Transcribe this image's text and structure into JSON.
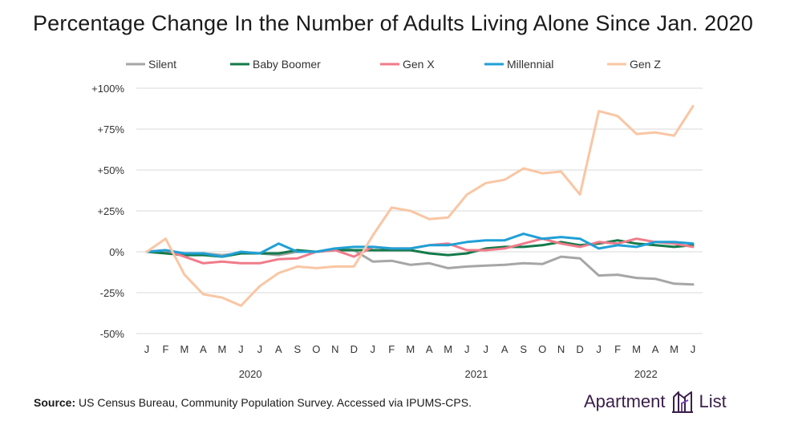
{
  "chart_data": {
    "type": "line",
    "title": "Percentage Change In the Number of Adults Living Alone Since Jan. 2020",
    "categories": [
      "J",
      "F",
      "M",
      "A",
      "M",
      "J",
      "J",
      "A",
      "S",
      "O",
      "N",
      "D",
      "J",
      "F",
      "M",
      "A",
      "M",
      "J",
      "J",
      "A",
      "S",
      "O",
      "N",
      "D",
      "J",
      "F",
      "M",
      "A",
      "M",
      "J"
    ],
    "year_labels": [
      "2020",
      "2021",
      "2022"
    ],
    "ylim": [
      -50,
      100
    ],
    "yticks": [
      -50,
      -25,
      0,
      25,
      50,
      75,
      100
    ],
    "ytick_labels": [
      "-50%",
      "-25%",
      "0%",
      "+25%",
      "+50%",
      "+75%",
      "+100%"
    ],
    "xlabel": "",
    "ylabel": "",
    "grid": true,
    "legend_position": "top",
    "series": [
      {
        "name": "Silent",
        "color": "#a6a6a6",
        "values": [
          0,
          0,
          -2,
          -1,
          -2,
          -1,
          -1,
          -2,
          0,
          0,
          2,
          1,
          -6,
          -5.5,
          -8,
          -7,
          -10,
          -9,
          -8.5,
          -8,
          -7,
          -7.5,
          -3,
          -4,
          -14.5,
          -14,
          -16,
          -16.5,
          -19.5,
          -20
        ]
      },
      {
        "name": "Baby Boomer",
        "color": "#137a4a",
        "values": [
          0,
          -1,
          -2,
          -2,
          -3,
          -1,
          -1,
          -1,
          1,
          0,
          1,
          1,
          1,
          1,
          1,
          -1,
          -2,
          -1,
          2,
          3,
          3,
          4,
          6,
          4,
          5,
          7,
          5,
          4,
          3,
          4
        ]
      },
      {
        "name": "Gen X",
        "color": "#f07b8a",
        "values": [
          0,
          1,
          -3,
          -7,
          -6,
          -7,
          -7,
          -4.5,
          -4,
          0,
          1,
          -3,
          3,
          2,
          2,
          4,
          5,
          1,
          1,
          2,
          5,
          8,
          5,
          3,
          6,
          5,
          8,
          6,
          5,
          3
        ]
      },
      {
        "name": "Millennial",
        "color": "#1fa0d6",
        "values": [
          0,
          1,
          -1,
          -1,
          -3,
          0,
          -1,
          5,
          0,
          0,
          2,
          3,
          3,
          2,
          2,
          4,
          4,
          6,
          7,
          7,
          11,
          8,
          9,
          8,
          2,
          4,
          3,
          6,
          6,
          5
        ]
      },
      {
        "name": "Gen Z",
        "color": "#f9c6a4",
        "values": [
          0,
          8,
          -14,
          -26,
          -28,
          -33,
          -21,
          -13,
          -9,
          -10,
          -9,
          -9,
          10,
          27,
          25,
          20,
          21,
          35,
          42,
          44,
          51,
          48,
          49,
          35,
          86,
          83,
          72,
          73,
          71,
          89
        ]
      }
    ]
  },
  "source": {
    "label": "Source:",
    "text": "US Census Bureau, Community Population Survey. Accessed via IPUMS-CPS."
  },
  "logo": {
    "word1": "Apartment",
    "word2": "List"
  }
}
